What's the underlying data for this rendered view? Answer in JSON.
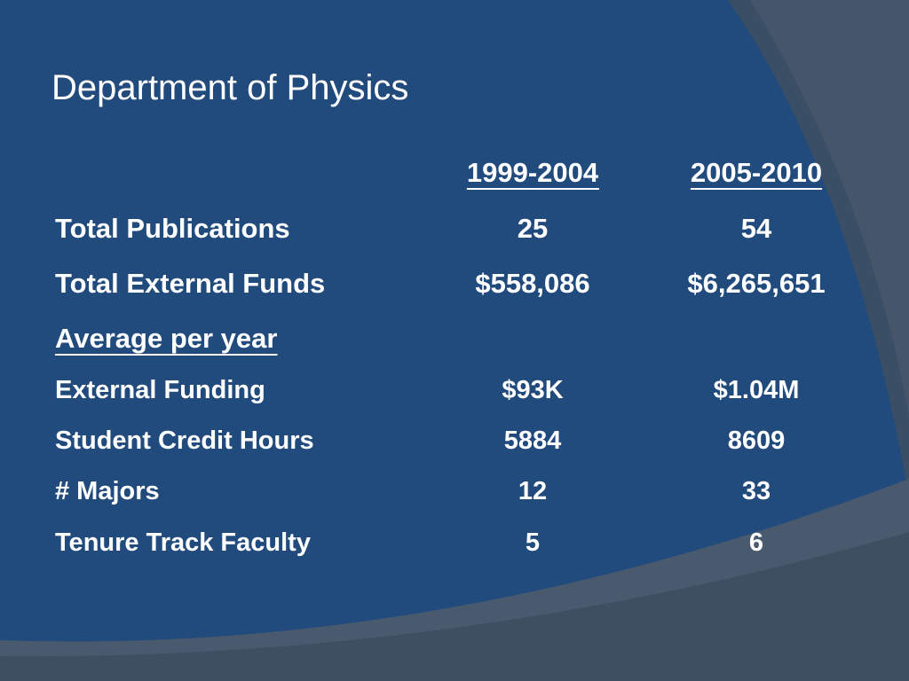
{
  "title": "Department of Physics",
  "table": {
    "headers": [
      "1999-2004",
      "2005-2010"
    ],
    "rows": [
      [
        "Total Publications",
        "25",
        "54"
      ],
      [
        "Total External Funds",
        "$558,086",
        "$6,265,651"
      ]
    ],
    "subheading": "Average per year",
    "sub_rows": [
      [
        "External Funding",
        "$93K",
        "$1.04M"
      ],
      [
        "Student Credit Hours",
        "5884",
        "8609"
      ],
      [
        "# Majors",
        "12",
        "33"
      ],
      [
        "Tenure Track Faculty",
        "5",
        "6"
      ]
    ]
  }
}
